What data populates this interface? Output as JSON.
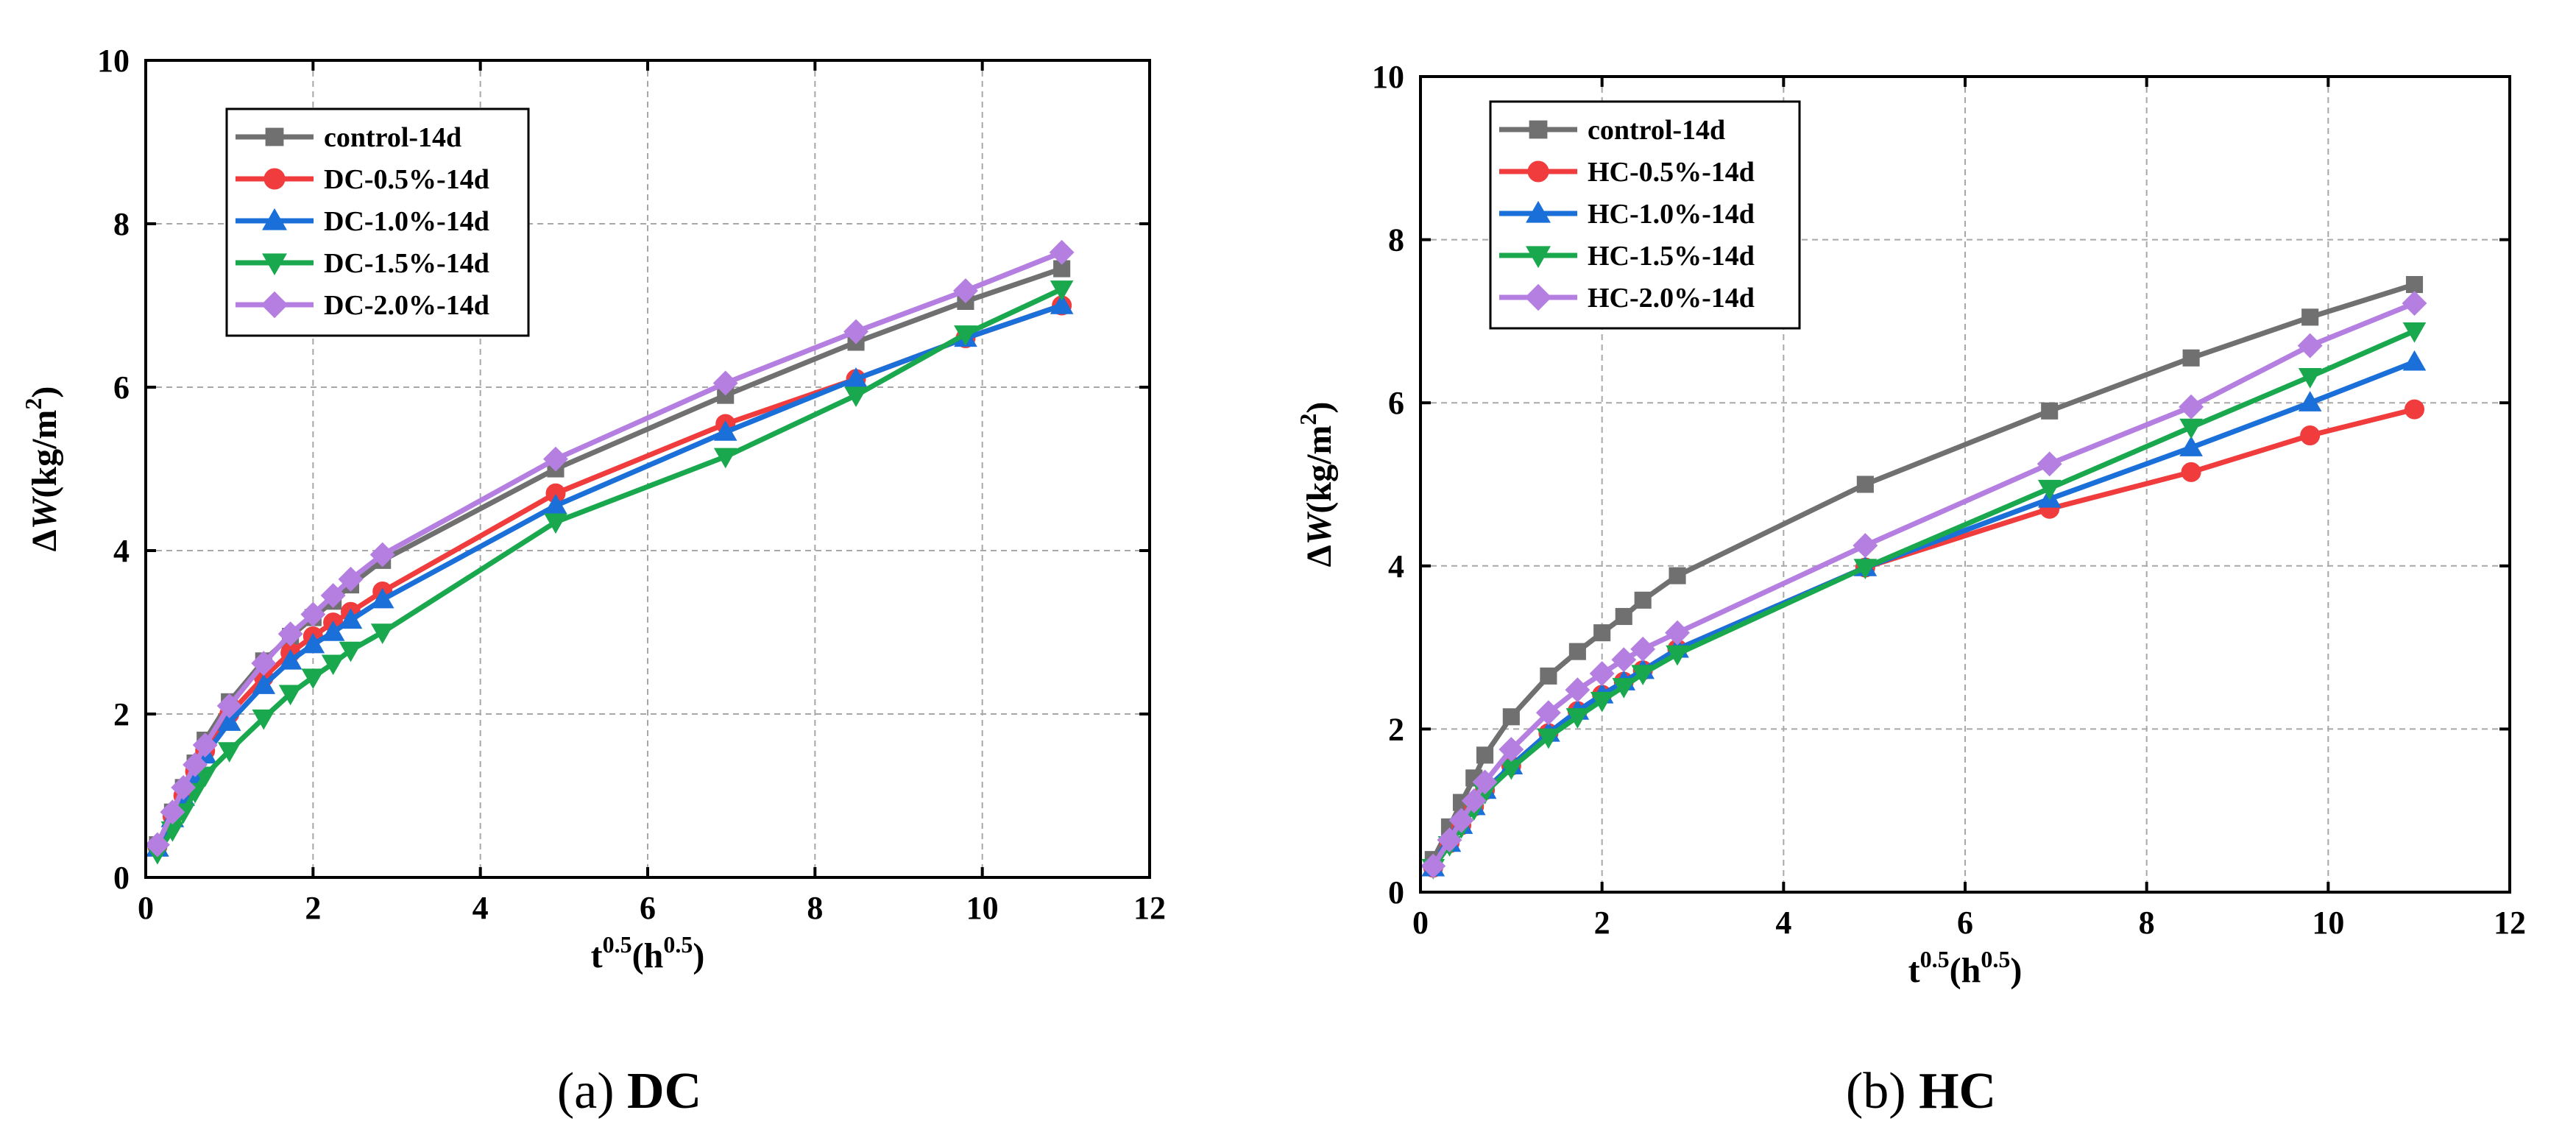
{
  "chart_data": [
    {
      "type": "line",
      "caption_prefix": "(a) ",
      "caption": "DC",
      "xlabel": {
        "base": "t",
        "sup": "0.5",
        "mid": "(h",
        "sup2": "0.5",
        "end": ")"
      },
      "ylabel": {
        "delta": "Δ",
        "var": "W",
        "unit": "(kg/m",
        "sup": "2",
        "end": ")"
      },
      "xlim": [
        0,
        12
      ],
      "ylim": [
        0,
        10
      ],
      "xticks": [
        0,
        2,
        4,
        6,
        8,
        10,
        12
      ],
      "yticks": [
        0,
        2,
        4,
        6,
        8,
        10
      ],
      "grid": true,
      "legend_position": "top-left",
      "x": [
        0.14,
        0.32,
        0.45,
        0.59,
        0.71,
        1.0,
        1.41,
        1.73,
        2.0,
        2.24,
        2.45,
        2.83,
        4.9,
        6.93,
        8.49,
        9.8,
        10.95
      ],
      "series": [
        {
          "name": "control-14d",
          "color": "#707070",
          "marker": "square",
          "values": [
            0.4,
            0.8,
            1.1,
            1.4,
            1.68,
            2.15,
            2.65,
            2.95,
            3.18,
            3.38,
            3.58,
            3.88,
            5.0,
            5.9,
            6.55,
            7.05,
            7.45
          ]
        },
        {
          "name": "DC-0.5%-14d",
          "color": "#f03c3c",
          "marker": "circle",
          "values": [
            0.38,
            0.75,
            1.0,
            1.3,
            1.55,
            2.0,
            2.45,
            2.75,
            2.95,
            3.12,
            3.25,
            3.5,
            4.7,
            5.55,
            6.1,
            6.6,
            7.0
          ]
        },
        {
          "name": "DC-1.0%-14d",
          "color": "#1a6fd9",
          "marker": "triangle-up",
          "values": [
            0.36,
            0.72,
            0.98,
            1.25,
            1.5,
            1.9,
            2.35,
            2.65,
            2.85,
            3.0,
            3.15,
            3.4,
            4.55,
            5.45,
            6.1,
            6.6,
            7.0
          ]
        },
        {
          "name": "DC-1.5%-14d",
          "color": "#1aa84e",
          "marker": "triangle-down",
          "values": [
            0.3,
            0.58,
            0.8,
            1.05,
            1.25,
            1.55,
            1.95,
            2.25,
            2.45,
            2.62,
            2.78,
            3.0,
            4.35,
            5.15,
            5.9,
            6.65,
            7.2
          ]
        },
        {
          "name": "DC-2.0%-14d",
          "color": "#b47fe0",
          "marker": "diamond",
          "values": [
            0.4,
            0.8,
            1.1,
            1.38,
            1.62,
            2.1,
            2.62,
            2.98,
            3.22,
            3.45,
            3.65,
            3.95,
            5.12,
            6.05,
            6.68,
            7.18,
            7.65
          ]
        }
      ]
    },
    {
      "type": "line",
      "caption_prefix": "(b) ",
      "caption": "HC",
      "xlabel": {
        "base": "t",
        "sup": "0.5",
        "mid": "(h",
        "sup2": "0.5",
        "end": ")"
      },
      "ylabel": {
        "delta": "Δ",
        "var": "W",
        "unit": "(kg/m",
        "sup": "2",
        "end": ")"
      },
      "xlim": [
        0,
        12
      ],
      "ylim": [
        0,
        10
      ],
      "xticks": [
        0,
        2,
        4,
        6,
        8,
        10,
        12
      ],
      "yticks": [
        0,
        2,
        4,
        6,
        8,
        10
      ],
      "grid": true,
      "legend_position": "top-left",
      "x": [
        0.14,
        0.32,
        0.45,
        0.59,
        0.71,
        1.0,
        1.41,
        1.73,
        2.0,
        2.24,
        2.45,
        2.83,
        4.9,
        6.93,
        8.49,
        9.8,
        10.95
      ],
      "series": [
        {
          "name": "control-14d",
          "color": "#707070",
          "marker": "square",
          "values": [
            0.4,
            0.8,
            1.1,
            1.4,
            1.68,
            2.15,
            2.65,
            2.95,
            3.18,
            3.38,
            3.58,
            3.88,
            5.0,
            5.9,
            6.55,
            7.05,
            7.45
          ]
        },
        {
          "name": "HC-0.5%-14d",
          "color": "#f03c3c",
          "marker": "circle",
          "values": [
            0.3,
            0.6,
            0.82,
            1.05,
            1.25,
            1.55,
            1.95,
            2.22,
            2.42,
            2.58,
            2.72,
            2.98,
            3.98,
            4.7,
            5.15,
            5.6,
            5.92
          ]
        },
        {
          "name": "HC-1.0%-14d",
          "color": "#1a6fd9",
          "marker": "triangle-up",
          "values": [
            0.3,
            0.6,
            0.82,
            1.05,
            1.25,
            1.55,
            1.95,
            2.22,
            2.42,
            2.58,
            2.72,
            2.98,
            3.98,
            4.82,
            5.45,
            6.0,
            6.5
          ]
        },
        {
          "name": "HC-1.5%-14d",
          "color": "#1aa84e",
          "marker": "triangle-down",
          "values": [
            0.3,
            0.58,
            0.8,
            1.02,
            1.22,
            1.52,
            1.9,
            2.15,
            2.35,
            2.52,
            2.68,
            2.92,
            3.98,
            4.95,
            5.7,
            6.32,
            6.88
          ]
        },
        {
          "name": "HC-2.0%-14d",
          "color": "#b47fe0",
          "marker": "diamond",
          "values": [
            0.32,
            0.64,
            0.88,
            1.12,
            1.35,
            1.75,
            2.2,
            2.48,
            2.68,
            2.85,
            2.98,
            3.18,
            4.25,
            5.25,
            5.95,
            6.7,
            7.22
          ]
        }
      ]
    }
  ]
}
